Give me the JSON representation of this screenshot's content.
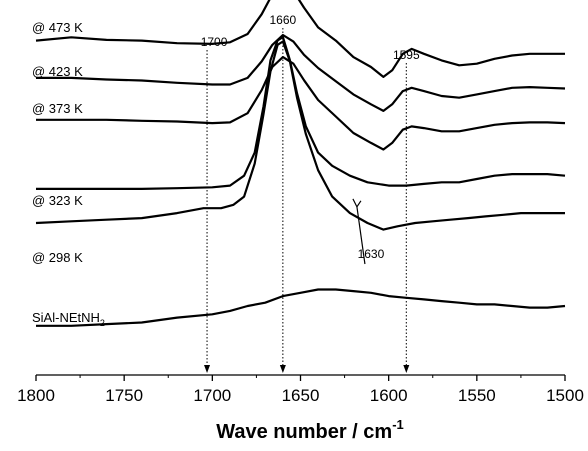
{
  "chart_data": {
    "type": "line",
    "xlabel": "Wave number / cm",
    "xlabel_superscript": "-1",
    "xlim": [
      1800,
      1500
    ],
    "x_reversed": true,
    "x_ticks": [
      1800,
      1750,
      1700,
      1650,
      1600,
      1550,
      1500
    ],
    "y_axis_shown": false,
    "grid": false,
    "legend": "none",
    "line_color": "#000000",
    "series": [
      {
        "name": "@ 473 K",
        "points": [
          [
            1800,
            -0.02
          ],
          [
            1780,
            -0.01
          ],
          [
            1760,
            -0.018
          ],
          [
            1740,
            -0.02
          ],
          [
            1720,
            -0.028
          ],
          [
            1700,
            -0.03
          ],
          [
            1690,
            -0.025
          ],
          [
            1680,
            0.0
          ],
          [
            1672,
            0.06
          ],
          [
            1666,
            0.12
          ],
          [
            1660,
            0.15
          ],
          [
            1654,
            0.13
          ],
          [
            1648,
            0.08
          ],
          [
            1640,
            0.02
          ],
          [
            1630,
            -0.02
          ],
          [
            1620,
            -0.07
          ],
          [
            1610,
            -0.1
          ],
          [
            1603,
            -0.13
          ],
          [
            1598,
            -0.11
          ],
          [
            1592,
            -0.06
          ],
          [
            1587,
            -0.045
          ],
          [
            1580,
            -0.06
          ],
          [
            1570,
            -0.08
          ],
          [
            1560,
            -0.095
          ],
          [
            1550,
            -0.09
          ],
          [
            1540,
            -0.075
          ],
          [
            1530,
            -0.065
          ],
          [
            1520,
            -0.06
          ],
          [
            1510,
            -0.06
          ],
          [
            1500,
            -0.06
          ]
        ]
      },
      {
        "name": "@ 423 K",
        "points": [
          [
            1800,
            -0.03
          ],
          [
            1780,
            -0.03
          ],
          [
            1760,
            -0.035
          ],
          [
            1740,
            -0.038
          ],
          [
            1720,
            -0.045
          ],
          [
            1700,
            -0.05
          ],
          [
            1690,
            -0.05
          ],
          [
            1680,
            -0.03
          ],
          [
            1672,
            0.02
          ],
          [
            1666,
            0.07
          ],
          [
            1660,
            0.1
          ],
          [
            1654,
            0.08
          ],
          [
            1648,
            0.04
          ],
          [
            1640,
            0.0
          ],
          [
            1630,
            -0.04
          ],
          [
            1620,
            -0.08
          ],
          [
            1610,
            -0.11
          ],
          [
            1603,
            -0.13
          ],
          [
            1598,
            -0.11
          ],
          [
            1592,
            -0.07
          ],
          [
            1587,
            -0.06
          ],
          [
            1580,
            -0.07
          ],
          [
            1570,
            -0.085
          ],
          [
            1560,
            -0.09
          ],
          [
            1550,
            -0.08
          ],
          [
            1540,
            -0.07
          ],
          [
            1530,
            -0.06
          ],
          [
            1520,
            -0.058
          ],
          [
            1510,
            -0.06
          ],
          [
            1500,
            -0.062
          ]
        ]
      },
      {
        "name": "@ 373 K",
        "points": [
          [
            1800,
            -0.06
          ],
          [
            1780,
            -0.06
          ],
          [
            1760,
            -0.06
          ],
          [
            1740,
            -0.063
          ],
          [
            1720,
            -0.065
          ],
          [
            1700,
            -0.07
          ],
          [
            1690,
            -0.068
          ],
          [
            1680,
            -0.04
          ],
          [
            1672,
            0.03
          ],
          [
            1666,
            0.1
          ],
          [
            1660,
            0.13
          ],
          [
            1654,
            0.11
          ],
          [
            1648,
            0.06
          ],
          [
            1640,
            0.0
          ],
          [
            1630,
            -0.05
          ],
          [
            1620,
            -0.1
          ],
          [
            1610,
            -0.13
          ],
          [
            1603,
            -0.15
          ],
          [
            1598,
            -0.13
          ],
          [
            1592,
            -0.09
          ],
          [
            1587,
            -0.08
          ],
          [
            1580,
            -0.085
          ],
          [
            1570,
            -0.095
          ],
          [
            1560,
            -0.095
          ],
          [
            1550,
            -0.085
          ],
          [
            1540,
            -0.075
          ],
          [
            1530,
            -0.07
          ],
          [
            1520,
            -0.068
          ],
          [
            1510,
            -0.068
          ],
          [
            1500,
            -0.07
          ]
        ]
      },
      {
        "name": "@ 323 K",
        "points": [
          [
            1800,
            -0.13
          ],
          [
            1780,
            -0.13
          ],
          [
            1760,
            -0.13
          ],
          [
            1740,
            -0.13
          ],
          [
            1720,
            -0.128
          ],
          [
            1700,
            -0.125
          ],
          [
            1690,
            -0.12
          ],
          [
            1682,
            -0.09
          ],
          [
            1676,
            -0.02
          ],
          [
            1671,
            0.12
          ],
          [
            1667,
            0.26
          ],
          [
            1663,
            0.32
          ],
          [
            1660,
            0.33
          ],
          [
            1656,
            0.26
          ],
          [
            1652,
            0.16
          ],
          [
            1647,
            0.06
          ],
          [
            1640,
            -0.02
          ],
          [
            1632,
            -0.06
          ],
          [
            1622,
            -0.09
          ],
          [
            1612,
            -0.11
          ],
          [
            1600,
            -0.12
          ],
          [
            1590,
            -0.12
          ],
          [
            1580,
            -0.115
          ],
          [
            1570,
            -0.11
          ],
          [
            1560,
            -0.11
          ],
          [
            1550,
            -0.1
          ],
          [
            1540,
            -0.09
          ],
          [
            1530,
            -0.085
          ],
          [
            1520,
            -0.085
          ],
          [
            1510,
            -0.085
          ],
          [
            1500,
            -0.09
          ]
        ]
      },
      {
        "name": "@ 298 K",
        "points": [
          [
            1800,
            -0.1
          ],
          [
            1780,
            -0.095
          ],
          [
            1760,
            -0.09
          ],
          [
            1740,
            -0.085
          ],
          [
            1720,
            -0.07
          ],
          [
            1705,
            -0.055
          ],
          [
            1695,
            -0.055
          ],
          [
            1688,
            -0.045
          ],
          [
            1682,
            -0.02
          ],
          [
            1676,
            0.08
          ],
          [
            1671,
            0.23
          ],
          [
            1667,
            0.36
          ],
          [
            1663,
            0.44
          ],
          [
            1660,
            0.45
          ],
          [
            1656,
            0.39
          ],
          [
            1652,
            0.28
          ],
          [
            1647,
            0.17
          ],
          [
            1640,
            0.06
          ],
          [
            1632,
            -0.02
          ],
          [
            1622,
            -0.07
          ],
          [
            1612,
            -0.1
          ],
          [
            1603,
            -0.12
          ],
          [
            1595,
            -0.11
          ],
          [
            1585,
            -0.1
          ],
          [
            1575,
            -0.095
          ],
          [
            1565,
            -0.09
          ],
          [
            1555,
            -0.085
          ],
          [
            1545,
            -0.08
          ],
          [
            1535,
            -0.075
          ],
          [
            1525,
            -0.07
          ],
          [
            1515,
            -0.07
          ],
          [
            1500,
            -0.07
          ]
        ]
      },
      {
        "name": "SiAl-NEtNH",
        "name_subscript": "2",
        "points": [
          [
            1800,
            -0.06
          ],
          [
            1780,
            -0.06
          ],
          [
            1760,
            -0.055
          ],
          [
            1740,
            -0.05
          ],
          [
            1720,
            -0.035
          ],
          [
            1700,
            -0.025
          ],
          [
            1690,
            -0.015
          ],
          [
            1680,
            0.0
          ],
          [
            1670,
            0.01
          ],
          [
            1660,
            0.03
          ],
          [
            1650,
            0.04
          ],
          [
            1640,
            0.05
          ],
          [
            1630,
            0.05
          ],
          [
            1620,
            0.045
          ],
          [
            1610,
            0.04
          ],
          [
            1600,
            0.03
          ],
          [
            1590,
            0.025
          ],
          [
            1580,
            0.02
          ],
          [
            1570,
            0.015
          ],
          [
            1560,
            0.01
          ],
          [
            1550,
            0.005
          ],
          [
            1540,
            0.005
          ],
          [
            1530,
            0.0
          ],
          [
            1520,
            -0.005
          ],
          [
            1510,
            -0.005
          ],
          [
            1500,
            0.0
          ]
        ]
      }
    ],
    "reference_lines": [
      {
        "label": "1700",
        "x": 1703
      },
      {
        "label": "1660",
        "x": 1660
      },
      {
        "label": "1595",
        "x": 1590
      }
    ],
    "annotations": [
      {
        "label": "1630",
        "x": 1618
      }
    ]
  }
}
